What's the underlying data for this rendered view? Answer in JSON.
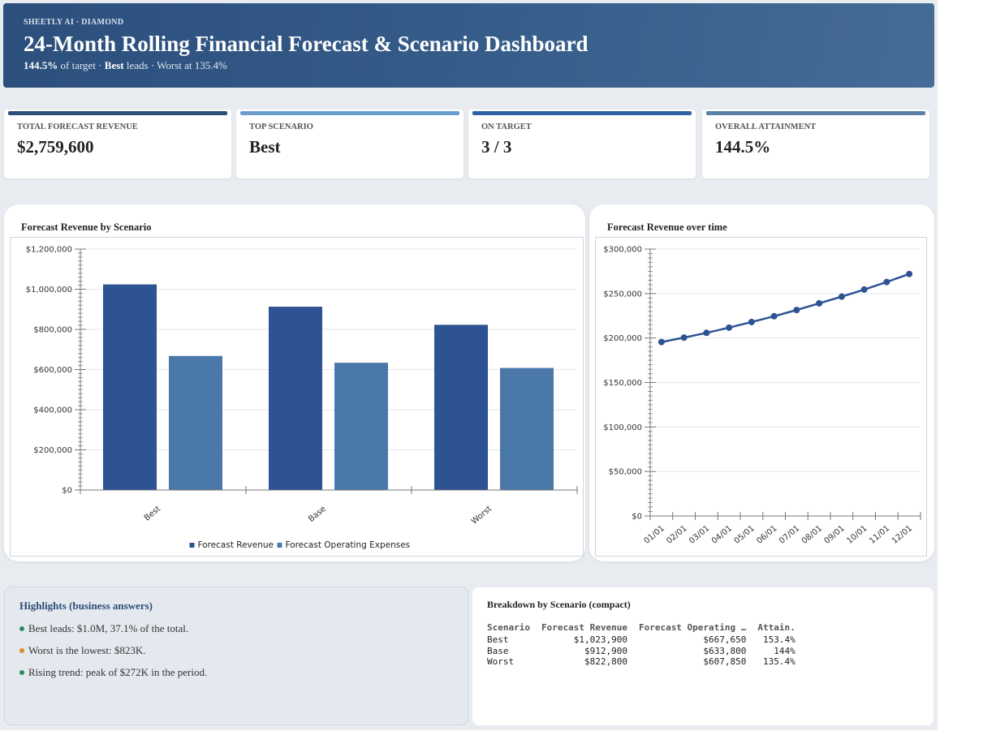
{
  "header": {
    "brand": "SHEETLY AI · DIAMOND",
    "title": "24-Month Rolling Financial Forecast & Scenario Dashboard",
    "subtitle_pct": "144.5%",
    "subtitle_mid": " of target · ",
    "subtitle_lead": "Best",
    "subtitle_end": " leads · Worst at 135.4%"
  },
  "kpis": [
    {
      "label": "TOTAL FORECAST REVENUE",
      "value": "$2,759,600",
      "color": "#2c4f7c"
    },
    {
      "label": "TOP SCENARIO",
      "value": "Best",
      "color": "#6a9ccf"
    },
    {
      "label": "ON TARGET",
      "value": "3 / 3",
      "color": "#2f62a0"
    },
    {
      "label": "OVERALL ATTAINMENT",
      "value": "144.5%",
      "color": "#5a7fa8"
    }
  ],
  "bar_chart_title": "Forecast Revenue by Scenario",
  "line_chart_title": "Forecast Revenue over time",
  "chart_data": [
    {
      "type": "bar",
      "title": "Forecast Revenue by Scenario",
      "categories": [
        "Best",
        "Base",
        "Worst"
      ],
      "series": [
        {
          "name": "Forecast Revenue",
          "values": [
            1023900,
            912900,
            822800
          ],
          "color": "#2e5393"
        },
        {
          "name": "Forecast Operating Expenses",
          "values": [
            667650,
            633800,
            607850
          ],
          "color": "#4a78a8"
        }
      ],
      "ylim": [
        0,
        1200000
      ],
      "yticks": [
        "$0",
        "$200,000",
        "$400,000",
        "$600,000",
        "$800,000",
        "$1,000,000",
        "$1,200,000"
      ],
      "legend": "bottom",
      "grid": true
    },
    {
      "type": "line",
      "title": "Forecast Revenue over time",
      "x": [
        "01/01",
        "02/01",
        "03/01",
        "04/01",
        "05/01",
        "06/01",
        "07/01",
        "08/01",
        "09/01",
        "10/01",
        "11/01",
        "12/01"
      ],
      "series": [
        {
          "values": [
            195500,
            200500,
            205800,
            211700,
            218000,
            224500,
            231500,
            239000,
            246500,
            254500,
            263000,
            272000
          ],
          "color": "#2e5393"
        }
      ],
      "ylim": [
        0,
        300000
      ],
      "yticks": [
        "$0",
        "$50,000",
        "$100,000",
        "$150,000",
        "$200,000",
        "$250,000",
        "$300,000"
      ],
      "grid": true
    }
  ],
  "highlights": {
    "title": "Highlights (business answers)",
    "items": [
      {
        "text": "Best leads: $1.0M, 37.1% of the total.",
        "color": "#2e8b57"
      },
      {
        "text": "Worst is the lowest: $823K.",
        "color": "#e08a2c"
      },
      {
        "text": "Rising trend: peak of $272K in the period.",
        "color": "#2e8b57"
      }
    ]
  },
  "breakdown": {
    "title": "Breakdown by Scenario (compact)",
    "headers": [
      "Scenario",
      "Forecast Revenue",
      "Forecast Operating …",
      "Attain."
    ],
    "rows": [
      [
        "Best",
        "$1,023,900",
        "$667,650",
        "153.4%"
      ],
      [
        "Base",
        "$912,900",
        "$633,800",
        "144%"
      ],
      [
        "Worst",
        "$822,800",
        "$607,850",
        "135.4%"
      ]
    ]
  }
}
